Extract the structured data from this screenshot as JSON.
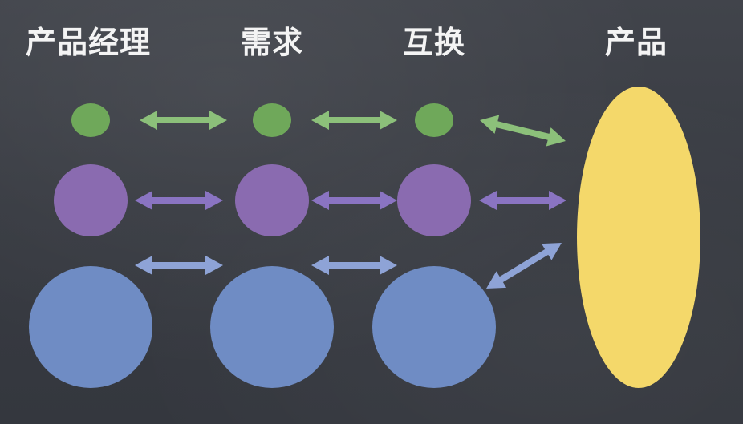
{
  "headings": {
    "product_manager": "产品经理",
    "requirements": "需求",
    "exchange": "互换",
    "product": "产品"
  },
  "colors": {
    "background": "#3a3d44",
    "green": "#6fa85a",
    "purple": "#8a6bb0",
    "blue": "#6f8cc4",
    "yellow": "#f4d86a",
    "arrow_green": "#8cc07a",
    "arrow_purple": "#8a74c2",
    "arrow_blue": "#8ea3d6"
  },
  "icons": [
    "double-headed-arrow"
  ]
}
